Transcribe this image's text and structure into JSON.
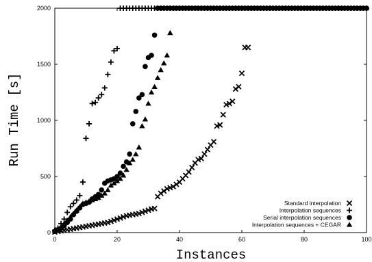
{
  "chart_data": {
    "type": "scatter",
    "xlabel": "Instances",
    "ylabel": "Run Time [s]",
    "xlim": [
      0,
      100
    ],
    "ylim": [
      0,
      2000
    ],
    "xticks": [
      0,
      20,
      40,
      60,
      80,
      100
    ],
    "yticks": [
      0,
      500,
      1000,
      1500,
      2000
    ],
    "grid": false,
    "legend_position": "bottom-right",
    "series": [
      {
        "name": "Standard interpolation",
        "marker": "x",
        "x": [
          0,
          1,
          2,
          3,
          4,
          5,
          6,
          7,
          8,
          9,
          10,
          11,
          12,
          13,
          14,
          15,
          16,
          17,
          18,
          19,
          20,
          21,
          22,
          23,
          24,
          25,
          26,
          27,
          28,
          29,
          30,
          31,
          32,
          33,
          34,
          35,
          36,
          37,
          38,
          39,
          40,
          41,
          42,
          43,
          44,
          45,
          46,
          47,
          48,
          49,
          50,
          51,
          52,
          53,
          54,
          55,
          56,
          57,
          58,
          59,
          60,
          61,
          62
        ],
        "y": [
          5,
          10,
          15,
          20,
          25,
          30,
          35,
          40,
          45,
          50,
          55,
          60,
          65,
          70,
          75,
          80,
          85,
          90,
          100,
          110,
          120,
          130,
          140,
          150,
          155,
          160,
          165,
          170,
          180,
          190,
          200,
          210,
          215,
          320,
          350,
          370,
          390,
          400,
          410,
          430,
          450,
          480,
          510,
          540,
          580,
          620,
          650,
          660,
          700,
          740,
          780,
          810,
          950,
          960,
          1050,
          1140,
          1150,
          1170,
          1280,
          1300,
          1420,
          1650,
          1650
        ]
      },
      {
        "name": "Interpolation sequences",
        "marker": "+",
        "x": [
          0,
          1,
          2,
          3,
          4,
          5,
          6,
          7,
          8,
          9,
          10,
          11,
          12,
          13,
          14,
          15,
          16,
          17,
          18,
          19,
          20,
          21,
          22,
          23,
          24,
          25,
          26,
          27,
          28,
          29,
          30,
          31,
          32,
          33,
          34,
          35,
          36,
          37,
          38,
          39,
          40,
          41,
          42,
          43,
          44,
          45,
          46,
          47,
          48,
          49,
          50,
          51,
          52,
          53,
          54,
          55,
          56,
          57,
          58,
          59,
          60,
          61,
          62,
          63,
          64,
          65,
          66,
          67,
          68,
          69,
          70,
          71,
          72,
          73,
          74,
          75,
          76,
          77,
          78,
          79,
          80,
          81,
          82,
          83,
          84,
          85,
          86,
          87,
          88,
          89,
          90,
          91,
          92,
          93,
          94,
          95,
          96,
          97,
          98,
          99,
          100
        ],
        "y": [
          20,
          40,
          80,
          120,
          180,
          230,
          260,
          290,
          330,
          450,
          840,
          970,
          1150,
          1160,
          1200,
          1230,
          1290,
          1410,
          1520,
          1620,
          1640,
          2000,
          2000,
          2000,
          2000,
          2000,
          2000,
          2000,
          2000,
          2000,
          2000,
          2000,
          2000,
          2000,
          2000,
          2000,
          2000,
          2000,
          2000,
          2000,
          2000,
          2000,
          2000,
          2000,
          2000,
          2000,
          2000,
          2000,
          2000,
          2000,
          2000,
          2000,
          2000,
          2000,
          2000,
          2000,
          2000,
          2000,
          2000,
          2000,
          2000,
          2000,
          2000,
          2000,
          2000,
          2000,
          2000,
          2000,
          2000,
          2000,
          2000,
          2000,
          2000,
          2000,
          2000,
          2000,
          2000,
          2000,
          2000,
          2000,
          2000,
          2000,
          2000,
          2000,
          2000,
          2000,
          2000,
          2000,
          2000,
          2000,
          2000,
          2000,
          2000,
          2000,
          2000,
          2000,
          2000,
          2000,
          2000,
          2000,
          2000
        ]
      },
      {
        "name": "Serial interpolation sequences",
        "marker": "circle",
        "x": [
          0,
          1,
          2,
          3,
          4,
          5,
          6,
          7,
          8,
          9,
          10,
          11,
          12,
          13,
          14,
          15,
          16,
          17,
          18,
          19,
          20,
          21,
          22,
          23,
          24,
          25,
          26,
          27,
          28,
          29,
          30,
          31,
          32,
          33,
          34,
          35,
          36,
          37,
          38,
          39,
          40,
          41,
          42,
          43,
          44,
          45,
          46,
          47,
          48,
          49,
          50,
          51,
          52,
          53,
          54,
          55,
          56,
          57,
          58,
          59,
          60,
          61,
          62,
          63,
          64,
          65,
          66,
          67,
          68,
          69,
          70,
          71,
          72,
          73,
          74,
          75,
          76,
          77,
          78,
          79,
          80,
          81,
          82,
          83,
          84,
          85,
          86,
          87,
          88,
          89,
          90,
          91,
          92,
          93,
          94,
          95,
          96,
          97,
          98,
          99,
          100
        ],
        "y": [
          10,
          20,
          40,
          60,
          90,
          120,
          160,
          190,
          220,
          250,
          260,
          270,
          300,
          320,
          340,
          380,
          440,
          460,
          470,
          480,
          500,
          530,
          590,
          630,
          700,
          970,
          1080,
          1200,
          1230,
          1480,
          1560,
          1580,
          1760,
          2000,
          2000,
          2000,
          2000,
          2000,
          2000,
          2000,
          2000,
          2000,
          2000,
          2000,
          2000,
          2000,
          2000,
          2000,
          2000,
          2000,
          2000,
          2000,
          2000,
          2000,
          2000,
          2000,
          2000,
          2000,
          2000,
          2000,
          2000,
          2000,
          2000,
          2000,
          2000,
          2000,
          2000,
          2000,
          2000,
          2000,
          2000,
          2000,
          2000,
          2000,
          2000,
          2000,
          2000,
          2000,
          2000,
          2000,
          2000,
          2000,
          2000,
          2000,
          2000,
          2000,
          2000,
          2000,
          2000,
          2000,
          2000,
          2000,
          2000,
          2000,
          2000,
          2000,
          2000,
          2000,
          2000,
          2000,
          2000
        ]
      },
      {
        "name": "Interpolation sequences + CEGAR",
        "marker": "triangle",
        "x": [
          0,
          1,
          2,
          3,
          4,
          5,
          6,
          7,
          8,
          9,
          10,
          11,
          12,
          13,
          14,
          15,
          16,
          17,
          18,
          19,
          20,
          21,
          22,
          23,
          24,
          25,
          26,
          27,
          28,
          29,
          30,
          31,
          32,
          33,
          34,
          35,
          36,
          37,
          38,
          39,
          40,
          41,
          42,
          43,
          44,
          45,
          46,
          47,
          48,
          49,
          50,
          51,
          52,
          53,
          54,
          55,
          56,
          57,
          58,
          59,
          60,
          61,
          62,
          63,
          64,
          65,
          66,
          67,
          68,
          69,
          70,
          71,
          72,
          73,
          74,
          75,
          76,
          77,
          78,
          79,
          80,
          81,
          82,
          83,
          84,
          85,
          86,
          87,
          88,
          89,
          90,
          91,
          92,
          93,
          94,
          95,
          96,
          97,
          98,
          99,
          100
        ],
        "y": [
          20,
          30,
          50,
          80,
          110,
          140,
          170,
          200,
          230,
          260,
          270,
          280,
          290,
          300,
          310,
          330,
          350,
          380,
          420,
          440,
          460,
          480,
          510,
          560,
          620,
          650,
          700,
          760,
          950,
          1010,
          1150,
          1250,
          1300,
          1380,
          1450,
          1510,
          1580,
          1780,
          2000,
          2000,
          2000,
          2000,
          2000,
          2000,
          2000,
          2000,
          2000,
          2000,
          2000,
          2000,
          2000,
          2000,
          2000,
          2000,
          2000,
          2000,
          2000,
          2000,
          2000,
          2000,
          2000,
          2000,
          2000,
          2000,
          2000,
          2000,
          2000,
          2000,
          2000,
          2000,
          2000,
          2000,
          2000,
          2000,
          2000,
          2000,
          2000,
          2000,
          2000,
          2000,
          2000,
          2000,
          2000,
          2000,
          2000,
          2000,
          2000,
          2000,
          2000,
          2000,
          2000,
          2000,
          2000,
          2000,
          2000,
          2000,
          2000,
          2000,
          2000,
          2000,
          2000
        ]
      }
    ]
  }
}
